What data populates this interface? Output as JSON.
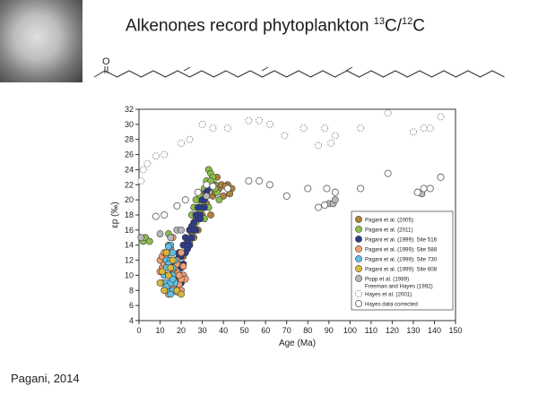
{
  "slide": {
    "title_main": "Alkenones record phytoplankton ",
    "title_sup1": "13",
    "title_mid": "C/",
    "title_sup2": "12",
    "title_end": "C",
    "molecule_atom": "O",
    "citation": "Pagani, 2014"
  },
  "chart_data": {
    "type": "scatter",
    "xlabel": "Age (Ma)",
    "ylabel": "εp (‰)",
    "xlim": [
      0,
      150
    ],
    "ylim": [
      4,
      32
    ],
    "xticks": [
      0,
      10,
      20,
      30,
      40,
      50,
      60,
      70,
      80,
      90,
      100,
      110,
      120,
      130,
      140,
      150
    ],
    "yticks": [
      4,
      6,
      8,
      10,
      12,
      14,
      16,
      18,
      20,
      22,
      24,
      26,
      28,
      30,
      32
    ],
    "grid": false,
    "legend_position": "bottom-right",
    "series": [
      {
        "name": "Pagani et al. (2005)",
        "color": "#b0833a",
        "style": "filled",
        "x": [
          22,
          24,
          26,
          28,
          30,
          32,
          35,
          36,
          38,
          40,
          42,
          44,
          33,
          31,
          29,
          27,
          25,
          23,
          21,
          37,
          39,
          41,
          43,
          34,
          26
        ],
        "y": [
          13,
          14.5,
          15,
          16,
          18,
          19.5,
          20.5,
          21,
          21.5,
          20.5,
          22,
          21.5,
          22,
          21,
          20,
          17.5,
          15.5,
          13.8,
          12.5,
          23,
          22,
          21.8,
          20.8,
          18,
          16.5
        ]
      },
      {
        "name": "Pagani et al. (2011)",
        "color": "#8cbf4a",
        "style": "filled",
        "x": [
          2,
          3,
          5,
          25,
          26,
          27,
          28,
          29,
          30,
          31,
          32,
          33,
          34,
          35,
          36,
          37,
          38,
          29,
          31,
          33,
          35,
          27,
          28,
          30,
          32,
          34,
          36,
          26,
          24,
          14
        ],
        "y": [
          14.5,
          15,
          14.5,
          18,
          19,
          20,
          21,
          20.5,
          20,
          21.5,
          22.5,
          24,
          23.5,
          23,
          22,
          21,
          20,
          18.5,
          17.5,
          19,
          22,
          17,
          18,
          19.5,
          21,
          22.5,
          21.5,
          16,
          16,
          15.5
        ]
      },
      {
        "name": "Pagani et al. (1999): Site 516",
        "color": "#2d3a8c",
        "style": "filled",
        "x": [
          15,
          16,
          17,
          18,
          19,
          20,
          21,
          22,
          23,
          24,
          25,
          26,
          27,
          28,
          29,
          30,
          31,
          32,
          17,
          18,
          19,
          20,
          21,
          22,
          23,
          24,
          25,
          26,
          27,
          28,
          29,
          30,
          31,
          32,
          33,
          18,
          19,
          20,
          21,
          20,
          19,
          18
        ],
        "y": [
          11,
          10,
          11.5,
          12,
          13,
          12.5,
          14,
          15,
          14.5,
          16,
          15,
          17,
          16,
          17.5,
          18,
          19,
          20,
          21,
          9.5,
          10.5,
          11,
          10,
          11.5,
          13,
          13.5,
          14,
          16.5,
          16,
          18,
          19,
          17.5,
          20,
          19,
          20.5,
          21.5,
          12,
          12.5,
          9,
          10,
          11,
          9.8,
          8.8
        ]
      },
      {
        "name": "Pagani et al. (1999): Site 588",
        "color": "#f0a070",
        "style": "filled",
        "x": [
          10,
          11,
          12,
          13,
          14,
          15,
          16,
          17,
          18,
          19,
          20,
          21,
          22,
          10,
          11,
          12,
          13,
          14,
          15,
          16,
          17,
          18,
          19,
          20,
          21,
          12,
          13,
          14,
          15,
          16,
          17,
          18,
          19,
          20,
          11,
          12,
          14,
          16,
          18
        ],
        "y": [
          12,
          11,
          10,
          9,
          8.5,
          10,
          9.5,
          11,
          10.5,
          9,
          8,
          10,
          9.5,
          10.5,
          12.5,
          11.5,
          12,
          10,
          11,
          8.5,
          9.2,
          7.8,
          8.8,
          9.5,
          11.2,
          13,
          12.8,
          14,
          13.5,
          15,
          11,
          12,
          10,
          13,
          9,
          8,
          7.5,
          10.8,
          11.5
        ]
      },
      {
        "name": "Pagani et al. (1999): Site 730",
        "color": "#5fc0e6",
        "style": "filled",
        "x": [
          12,
          13,
          14,
          15,
          16,
          17,
          13,
          14,
          15,
          16,
          14,
          15,
          16,
          13,
          14,
          15,
          16,
          17,
          15,
          14,
          13,
          16
        ],
        "y": [
          10,
          9,
          8,
          11,
          10,
          9,
          12,
          13,
          12,
          11,
          10,
          9,
          8,
          8.5,
          11.5,
          7.5,
          9.5,
          12,
          14,
          13.8,
          11,
          13
        ],
        "note": "Site 730"
      },
      {
        "name": "Pagani et al. (1999): Site 608",
        "color": "#d8b838",
        "style": "filled",
        "x": [
          10,
          12,
          14,
          16,
          18,
          20,
          15,
          13,
          11
        ],
        "y": [
          9,
          8,
          10,
          12,
          8,
          7.5,
          11,
          13,
          10.5
        ]
      },
      {
        "name": "Popp et al. (1989) Freeman and Hayes (1992)",
        "color": "#b8b8b8",
        "style": "filled",
        "x": [
          1,
          10,
          15,
          18,
          20,
          32,
          90,
          92,
          93,
          134
        ],
        "y": [
          15,
          15.5,
          15,
          16,
          16,
          20.5,
          19.5,
          19.5,
          20,
          20.8
        ]
      },
      {
        "name": "Hayes et al. (2001)",
        "color": "#888888",
        "style": "dashed",
        "x": [
          1,
          2,
          4,
          8,
          12,
          20,
          24,
          30,
          35,
          42,
          52,
          57,
          62,
          69,
          78,
          85,
          88,
          91,
          93,
          105,
          118,
          130,
          135,
          138,
          143
        ],
        "y": [
          22.5,
          24,
          24.8,
          25.8,
          26,
          27.5,
          28,
          30,
          29.5,
          29.5,
          30.5,
          30.5,
          30,
          28.5,
          29.5,
          27.2,
          29.5,
          27.5,
          28.5,
          29.5,
          31.5,
          29,
          29.5,
          29.5,
          31
        ]
      },
      {
        "name": "Hayes data corrected",
        "color": "#666666",
        "style": "open",
        "x": [
          8,
          12,
          18,
          22,
          28,
          32,
          35,
          42,
          52,
          57,
          62,
          70,
          80,
          85,
          88,
          89,
          93,
          105,
          118,
          132,
          135,
          138,
          143
        ],
        "y": [
          17.8,
          18,
          19.2,
          20,
          21,
          22,
          21.8,
          21.5,
          22.5,
          22.5,
          22,
          20.5,
          21.5,
          19,
          19.3,
          21.5,
          21,
          21.5,
          23.5,
          21,
          21.5,
          21.5,
          23
        ]
      }
    ]
  }
}
